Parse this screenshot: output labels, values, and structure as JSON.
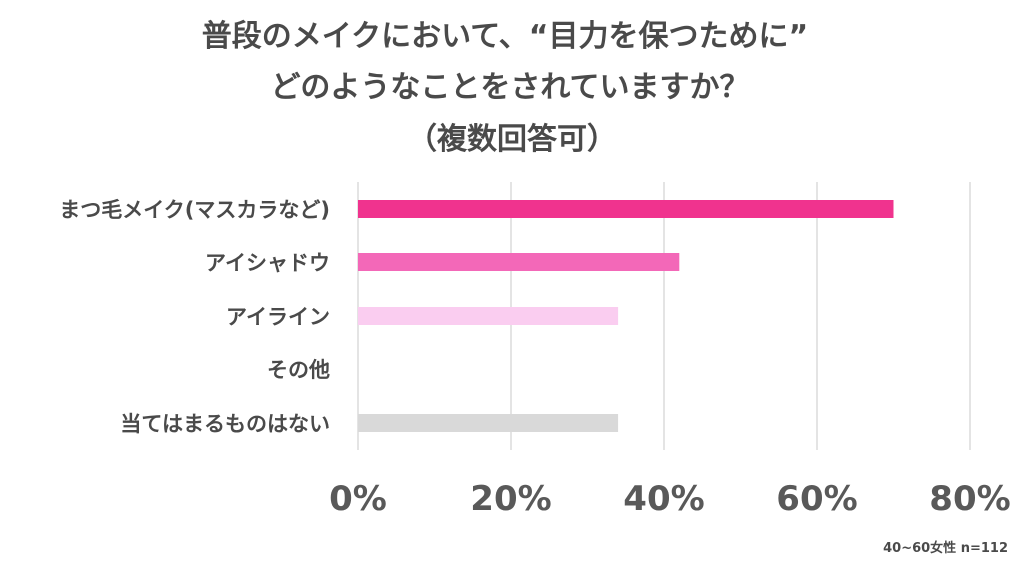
{
  "chart_data": {
    "type": "bar",
    "orientation": "horizontal",
    "title": [
      "普段のメイクにおいて、“目力を保つために”",
      "どのようなことをされていますか？",
      "（複数回答可）"
    ],
    "categories": [
      "まつ毛メイク(マスカラなど)",
      "アイシャドウ",
      "アイライン",
      "その他",
      "当てはまるものはない"
    ],
    "values": [
      70,
      42,
      34,
      0,
      34
    ],
    "colors": [
      "#f0338e",
      "#f368b8",
      "#facdf0",
      "#ffffff",
      "#d9d9d9"
    ],
    "xlim": [
      0,
      80
    ],
    "ticks": [
      {
        "value": 0,
        "label": "0%"
      },
      {
        "value": 20,
        "label": "20%"
      },
      {
        "value": 40,
        "label": "40%"
      },
      {
        "value": 60,
        "label": "60%"
      },
      {
        "value": 80,
        "label": "80%"
      }
    ],
    "grid": true,
    "legend": "none",
    "note": "40~60女性 n=112"
  }
}
